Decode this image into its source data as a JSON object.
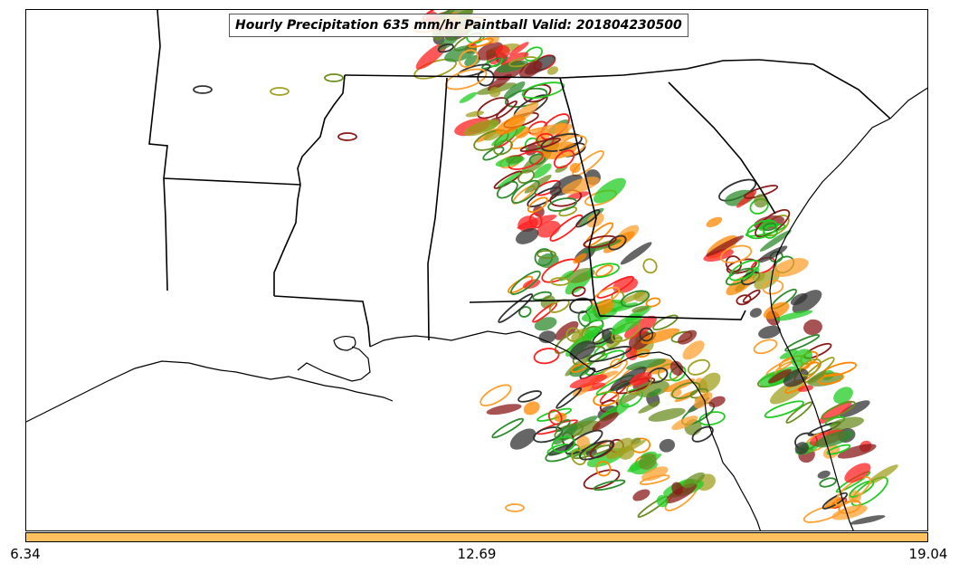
{
  "title": "Hourly Precipitation 635 mm/hr Paintball Valid: 201804230500",
  "colorbar": {
    "color": "#ffc060",
    "min_label": "6.34",
    "mid_label": "12.69",
    "max_label": "19.04"
  },
  "paintball_colors": [
    "#ff2020",
    "#22cc22",
    "#ff8800",
    "#8b1a1a",
    "#6b8e23",
    "#a0a020",
    "#2e8b2e",
    "#333333",
    "#ffa030"
  ],
  "map": {
    "region": "southeastern-united-states",
    "features": [
      "state-borders",
      "coastlines",
      "precipitation-contours"
    ]
  }
}
